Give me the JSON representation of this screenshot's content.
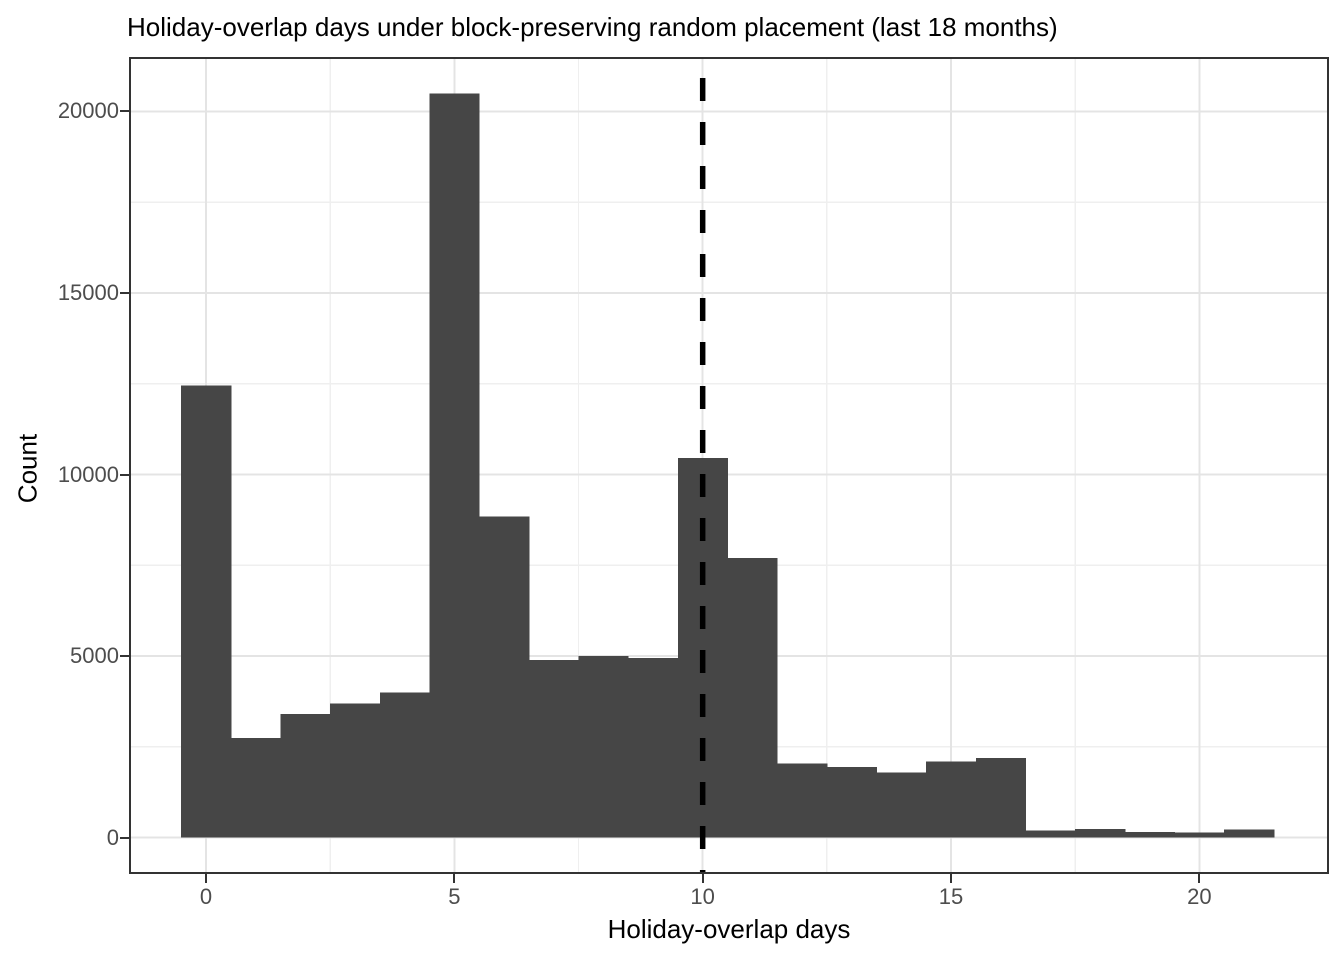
{
  "figure": {
    "title": "Holiday-overlap days under block-preserving random placement (last 18 months)",
    "x_axis_title": "Holiday-overlap days",
    "y_axis_title": "Count"
  },
  "chart_data": {
    "type": "bar",
    "subtype": "histogram",
    "title": "Holiday-overlap days under block-preserving random placement (last 18 months)",
    "xlabel": "Holiday-overlap days",
    "ylabel": "Count",
    "bin_width": 1,
    "bin_centers": [
      0,
      1,
      2,
      3,
      4,
      5,
      6,
      7,
      8,
      9,
      10,
      11,
      12,
      13,
      14,
      15,
      16,
      17,
      18,
      19,
      20,
      21
    ],
    "values": [
      12450,
      2750,
      3400,
      3700,
      4000,
      20500,
      8850,
      4900,
      5000,
      4950,
      10450,
      7700,
      2050,
      1950,
      1800,
      2100,
      2200,
      200,
      240,
      160,
      140,
      220
    ],
    "x_ticks": [
      0,
      5,
      10,
      15,
      20
    ],
    "y_ticks": [
      0,
      5000,
      10000,
      15000,
      20000
    ],
    "x_minor_ticks": [
      2.5,
      7.5,
      12.5,
      17.5
    ],
    "y_minor_ticks": [
      2500,
      7500,
      12500,
      17500
    ],
    "xlim": [
      -1.55,
      22.61
    ],
    "ylim": [
      -1000,
      21500
    ],
    "grid": true,
    "legend_position": "none",
    "reference_line": {
      "orientation": "vertical",
      "x": 10,
      "linetype": "dashed",
      "color": "#000000"
    },
    "colors": {
      "bar_fill": "#464646",
      "panel_background": "#ffffff",
      "panel_border": "#333333",
      "grid_major": "#e4e4e4",
      "grid_minor": "#efefef",
      "tick_mark": "#333333",
      "tick_label": "#4d4d4d",
      "title_text": "#000000"
    }
  }
}
